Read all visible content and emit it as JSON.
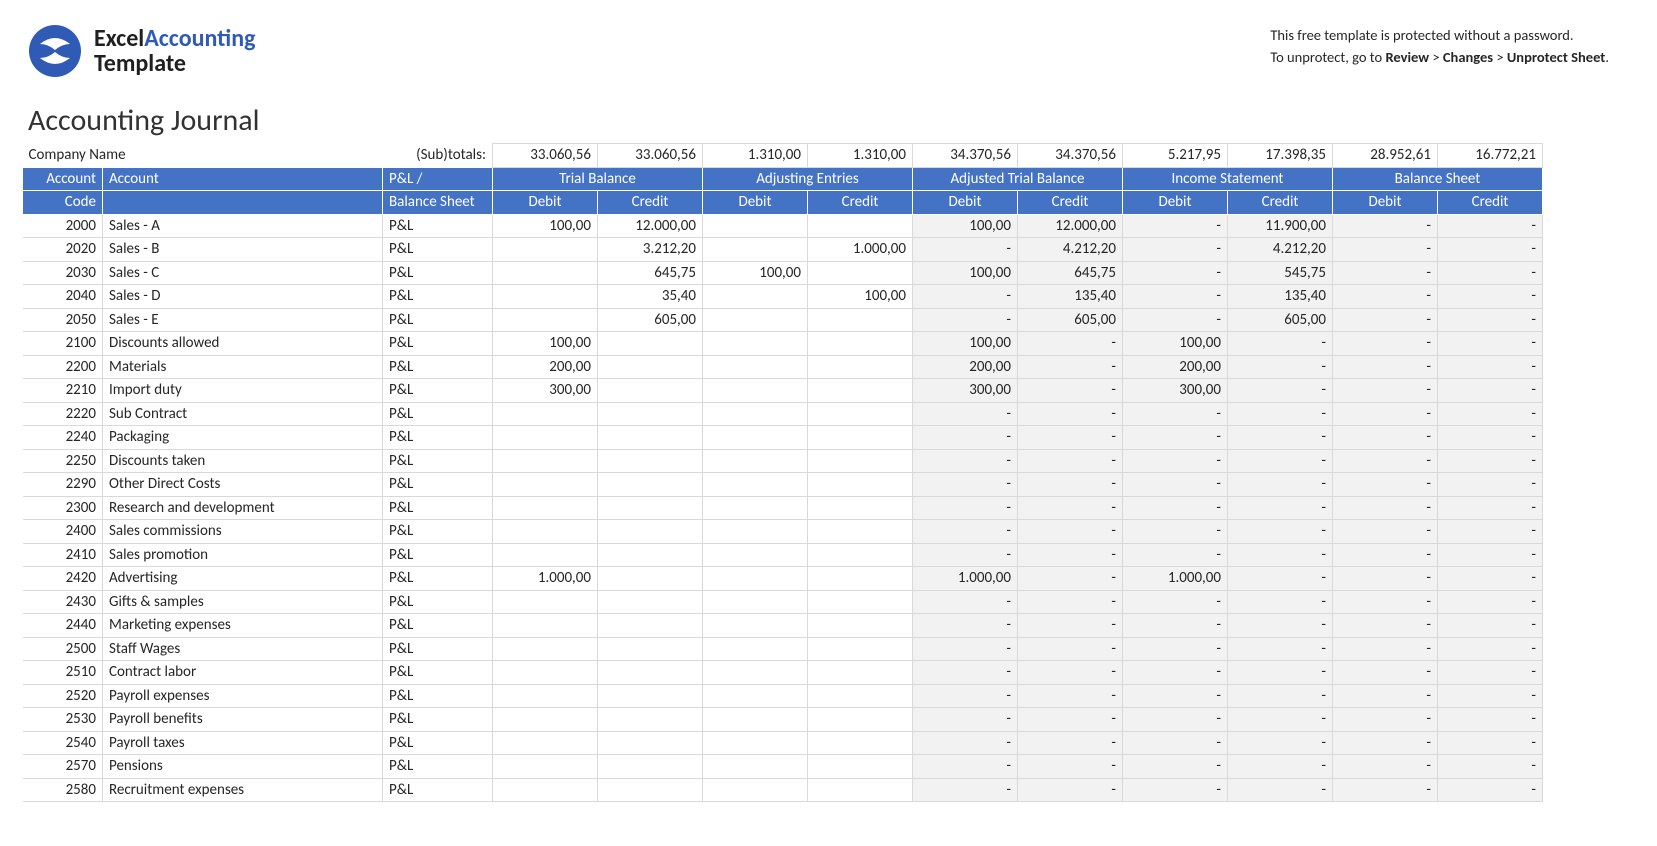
{
  "brand": {
    "word1": "Excel",
    "word2": "Accounting",
    "word3": "Template",
    "logo_bg": "#2f5bb7",
    "logo_fg": "#ffffff"
  },
  "notice": {
    "line1": "This free template is protected without a password.",
    "line2_prefix": "To unprotect, go to ",
    "path_1": "Review",
    "sep": " > ",
    "path_2": "Changes",
    "path_3": "Unprotect Sheet",
    "period": "."
  },
  "title": "Accounting Journal",
  "company_label": "Company Name",
  "subtotals_label": "(Sub)totals:",
  "colors": {
    "header_bg": "#4472c4",
    "header_fg": "#ffffff",
    "grid": "#d9d9d9",
    "calc_bg": "#f2f2f2"
  },
  "column_groups": [
    "Trial Balance",
    "Adjusting Entries",
    "Adjusted Trial Balance",
    "Income Statement",
    "Balance Sheet"
  ],
  "header": {
    "code1": "Account",
    "code2": "Code",
    "account": "Account",
    "type1": "P&L /",
    "type2": "Balance Sheet",
    "debit": "Debit",
    "credit": "Credit"
  },
  "dash": "-",
  "subtotals": [
    "33.060,56",
    "33.060,56",
    "1.310,00",
    "1.310,00",
    "34.370,56",
    "34.370,56",
    "5.217,95",
    "17.398,35",
    "28.952,61",
    "16.772,21"
  ],
  "rows": [
    {
      "code": "2000",
      "account": "Sales - A",
      "type": "P&L",
      "tb_d": "100,00",
      "tb_c": "12.000,00",
      "adj_d": "",
      "adj_c": "",
      "atb_d": "100,00",
      "atb_c": "12.000,00",
      "is_d": "-",
      "is_c": "11.900,00",
      "bs_d": "-",
      "bs_c": "-"
    },
    {
      "code": "2020",
      "account": "Sales - B",
      "type": "P&L",
      "tb_d": "",
      "tb_c": "3.212,20",
      "adj_d": "",
      "adj_c": "1.000,00",
      "atb_d": "-",
      "atb_c": "4.212,20",
      "is_d": "-",
      "is_c": "4.212,20",
      "bs_d": "-",
      "bs_c": "-"
    },
    {
      "code": "2030",
      "account": "Sales - C",
      "type": "P&L",
      "tb_d": "",
      "tb_c": "645,75",
      "adj_d": "100,00",
      "adj_c": "",
      "atb_d": "100,00",
      "atb_c": "645,75",
      "is_d": "-",
      "is_c": "545,75",
      "bs_d": "-",
      "bs_c": "-"
    },
    {
      "code": "2040",
      "account": "Sales - D",
      "type": "P&L",
      "tb_d": "",
      "tb_c": "35,40",
      "adj_d": "",
      "adj_c": "100,00",
      "atb_d": "-",
      "atb_c": "135,40",
      "is_d": "-",
      "is_c": "135,40",
      "bs_d": "-",
      "bs_c": "-"
    },
    {
      "code": "2050",
      "account": "Sales - E",
      "type": "P&L",
      "tb_d": "",
      "tb_c": "605,00",
      "adj_d": "",
      "adj_c": "",
      "atb_d": "-",
      "atb_c": "605,00",
      "is_d": "-",
      "is_c": "605,00",
      "bs_d": "-",
      "bs_c": "-"
    },
    {
      "code": "2100",
      "account": "Discounts allowed",
      "type": "P&L",
      "tb_d": "100,00",
      "tb_c": "",
      "adj_d": "",
      "adj_c": "",
      "atb_d": "100,00",
      "atb_c": "-",
      "is_d": "100,00",
      "is_c": "-",
      "bs_d": "-",
      "bs_c": "-"
    },
    {
      "code": "2200",
      "account": "Materials",
      "type": "P&L",
      "tb_d": "200,00",
      "tb_c": "",
      "adj_d": "",
      "adj_c": "",
      "atb_d": "200,00",
      "atb_c": "-",
      "is_d": "200,00",
      "is_c": "-",
      "bs_d": "-",
      "bs_c": "-"
    },
    {
      "code": "2210",
      "account": "Import duty",
      "type": "P&L",
      "tb_d": "300,00",
      "tb_c": "",
      "adj_d": "",
      "adj_c": "",
      "atb_d": "300,00",
      "atb_c": "-",
      "is_d": "300,00",
      "is_c": "-",
      "bs_d": "-",
      "bs_c": "-"
    },
    {
      "code": "2220",
      "account": "Sub Contract",
      "type": "P&L",
      "tb_d": "",
      "tb_c": "",
      "adj_d": "",
      "adj_c": "",
      "atb_d": "-",
      "atb_c": "-",
      "is_d": "-",
      "is_c": "-",
      "bs_d": "-",
      "bs_c": "-"
    },
    {
      "code": "2240",
      "account": "Packaging",
      "type": "P&L",
      "tb_d": "",
      "tb_c": "",
      "adj_d": "",
      "adj_c": "",
      "atb_d": "-",
      "atb_c": "-",
      "is_d": "-",
      "is_c": "-",
      "bs_d": "-",
      "bs_c": "-"
    },
    {
      "code": "2250",
      "account": "Discounts taken",
      "type": "P&L",
      "tb_d": "",
      "tb_c": "",
      "adj_d": "",
      "adj_c": "",
      "atb_d": "-",
      "atb_c": "-",
      "is_d": "-",
      "is_c": "-",
      "bs_d": "-",
      "bs_c": "-"
    },
    {
      "code": "2290",
      "account": "Other Direct Costs",
      "type": "P&L",
      "tb_d": "",
      "tb_c": "",
      "adj_d": "",
      "adj_c": "",
      "atb_d": "-",
      "atb_c": "-",
      "is_d": "-",
      "is_c": "-",
      "bs_d": "-",
      "bs_c": "-"
    },
    {
      "code": "2300",
      "account": "Research and development",
      "type": "P&L",
      "tb_d": "",
      "tb_c": "",
      "adj_d": "",
      "adj_c": "",
      "atb_d": "-",
      "atb_c": "-",
      "is_d": "-",
      "is_c": "-",
      "bs_d": "-",
      "bs_c": "-"
    },
    {
      "code": "2400",
      "account": "Sales commissions",
      "type": "P&L",
      "tb_d": "",
      "tb_c": "",
      "adj_d": "",
      "adj_c": "",
      "atb_d": "-",
      "atb_c": "-",
      "is_d": "-",
      "is_c": "-",
      "bs_d": "-",
      "bs_c": "-"
    },
    {
      "code": "2410",
      "account": "Sales promotion",
      "type": "P&L",
      "tb_d": "",
      "tb_c": "",
      "adj_d": "",
      "adj_c": "",
      "atb_d": "-",
      "atb_c": "-",
      "is_d": "-",
      "is_c": "-",
      "bs_d": "-",
      "bs_c": "-"
    },
    {
      "code": "2420",
      "account": "Advertising",
      "type": "P&L",
      "tb_d": "1.000,00",
      "tb_c": "",
      "adj_d": "",
      "adj_c": "",
      "atb_d": "1.000,00",
      "atb_c": "-",
      "is_d": "1.000,00",
      "is_c": "-",
      "bs_d": "-",
      "bs_c": "-"
    },
    {
      "code": "2430",
      "account": "Gifts & samples",
      "type": "P&L",
      "tb_d": "",
      "tb_c": "",
      "adj_d": "",
      "adj_c": "",
      "atb_d": "-",
      "atb_c": "-",
      "is_d": "-",
      "is_c": "-",
      "bs_d": "-",
      "bs_c": "-"
    },
    {
      "code": "2440",
      "account": "Marketing expenses",
      "type": "P&L",
      "tb_d": "",
      "tb_c": "",
      "adj_d": "",
      "adj_c": "",
      "atb_d": "-",
      "atb_c": "-",
      "is_d": "-",
      "is_c": "-",
      "bs_d": "-",
      "bs_c": "-"
    },
    {
      "code": "2500",
      "account": "Staff Wages",
      "type": "P&L",
      "tb_d": "",
      "tb_c": "",
      "adj_d": "",
      "adj_c": "",
      "atb_d": "-",
      "atb_c": "-",
      "is_d": "-",
      "is_c": "-",
      "bs_d": "-",
      "bs_c": "-"
    },
    {
      "code": "2510",
      "account": "Contract labor",
      "type": "P&L",
      "tb_d": "",
      "tb_c": "",
      "adj_d": "",
      "adj_c": "",
      "atb_d": "-",
      "atb_c": "-",
      "is_d": "-",
      "is_c": "-",
      "bs_d": "-",
      "bs_c": "-"
    },
    {
      "code": "2520",
      "account": "Payroll expenses",
      "type": "P&L",
      "tb_d": "",
      "tb_c": "",
      "adj_d": "",
      "adj_c": "",
      "atb_d": "-",
      "atb_c": "-",
      "is_d": "-",
      "is_c": "-",
      "bs_d": "-",
      "bs_c": "-"
    },
    {
      "code": "2530",
      "account": "Payroll benefits",
      "type": "P&L",
      "tb_d": "",
      "tb_c": "",
      "adj_d": "",
      "adj_c": "",
      "atb_d": "-",
      "atb_c": "-",
      "is_d": "-",
      "is_c": "-",
      "bs_d": "-",
      "bs_c": "-"
    },
    {
      "code": "2540",
      "account": "Payroll taxes",
      "type": "P&L",
      "tb_d": "",
      "tb_c": "",
      "adj_d": "",
      "adj_c": "",
      "atb_d": "-",
      "atb_c": "-",
      "is_d": "-",
      "is_c": "-",
      "bs_d": "-",
      "bs_c": "-"
    },
    {
      "code": "2570",
      "account": "Pensions",
      "type": "P&L",
      "tb_d": "",
      "tb_c": "",
      "adj_d": "",
      "adj_c": "",
      "atb_d": "-",
      "atb_c": "-",
      "is_d": "-",
      "is_c": "-",
      "bs_d": "-",
      "bs_c": "-"
    },
    {
      "code": "2580",
      "account": "Recruitment expenses",
      "type": "P&L",
      "tb_d": "",
      "tb_c": "",
      "adj_d": "",
      "adj_c": "",
      "atb_d": "-",
      "atb_c": "-",
      "is_d": "-",
      "is_c": "-",
      "bs_d": "-",
      "bs_c": "-"
    }
  ]
}
